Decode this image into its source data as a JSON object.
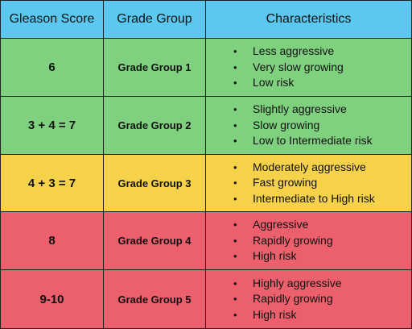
{
  "headers": {
    "score": "Gleason Score",
    "grade": "Grade Group",
    "characteristics": "Characteristics"
  },
  "colors": {
    "header": "#5cc8f0",
    "green": "#7fd17f",
    "yellow": "#f6d24a",
    "red": "#ec5f6c"
  },
  "rows": [
    {
      "score": "6",
      "grade": "Grade Group 1",
      "color": "green",
      "characteristics": [
        "Less aggressive",
        "Very slow growing",
        "Low risk"
      ]
    },
    {
      "score": "3 + 4 = 7",
      "grade": "Grade Group 2",
      "color": "green",
      "characteristics": [
        "Slightly aggressive",
        "Slow growing",
        "Low to Intermediate risk"
      ]
    },
    {
      "score": "4 + 3 = 7",
      "grade": "Grade Group 3",
      "color": "yellow",
      "characteristics": [
        "Moderately aggressive",
        "Fast growing",
        "Intermediate to High risk"
      ]
    },
    {
      "score": "8",
      "grade": "Grade Group 4",
      "color": "red",
      "characteristics": [
        "Aggressive",
        "Rapidly growing",
        "High risk"
      ]
    },
    {
      "score": "9-10",
      "grade": "Grade Group 5",
      "color": "red",
      "characteristics": [
        "Highly aggressive",
        "Rapidly growing",
        "High risk"
      ]
    }
  ]
}
